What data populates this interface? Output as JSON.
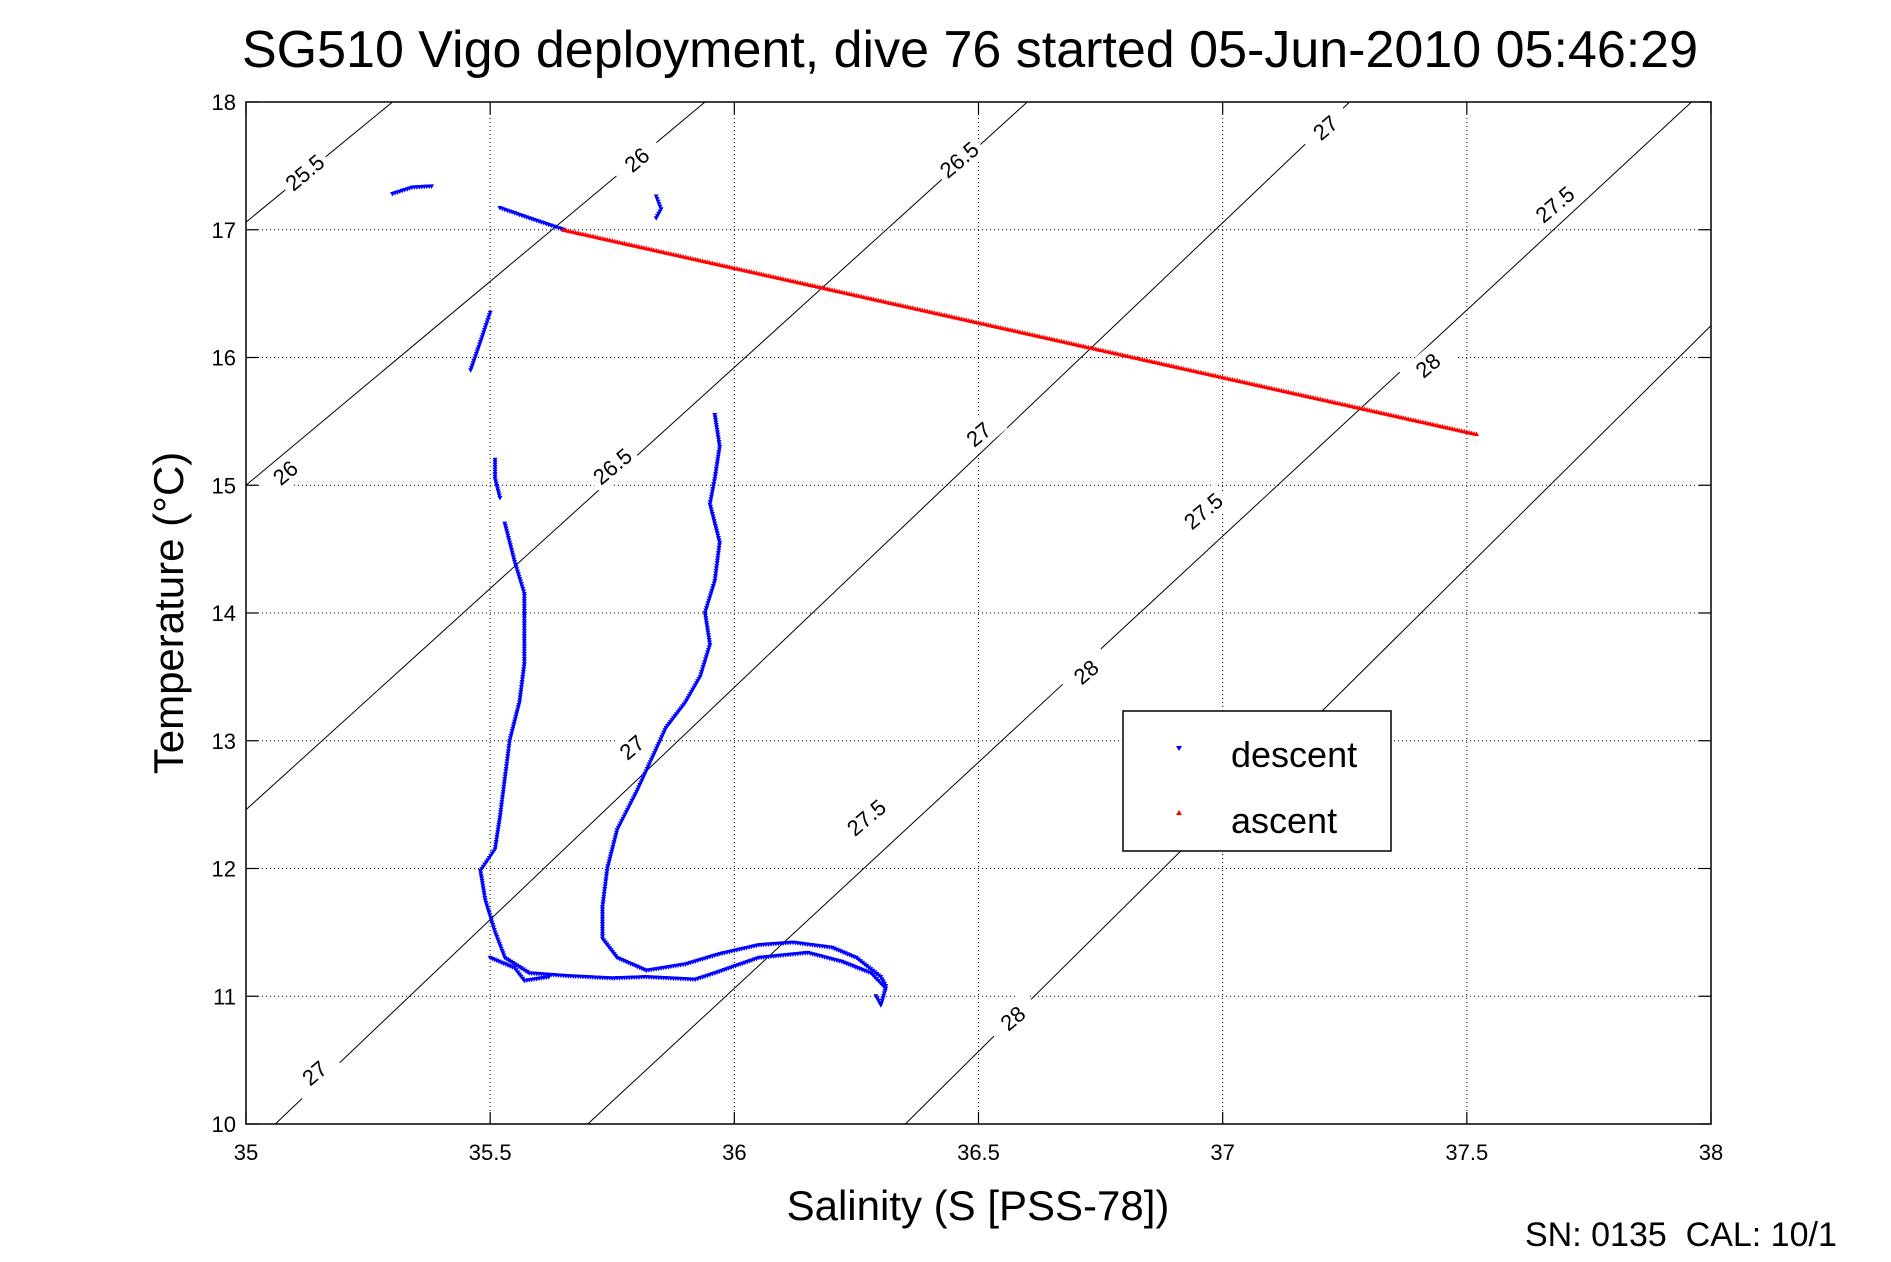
{
  "chart_data": {
    "type": "scatter",
    "title": "SG510 Vigo deployment, dive 76 started 05-Jun-2010 05:46:29",
    "xlabel": "Salinity (S [PSS-78])",
    "ylabel": "Temperature (°C)",
    "xlim": [
      35,
      38
    ],
    "ylim": [
      10,
      18
    ],
    "xticks": [
      "35",
      "35.5",
      "36",
      "36.5",
      "37",
      "37.5",
      "38"
    ],
    "yticks": [
      "10",
      "11",
      "12",
      "13",
      "14",
      "15",
      "16",
      "17",
      "18"
    ],
    "grid": true,
    "legend_position": "right-center",
    "footer": "SN: 0135  CAL: 10/1",
    "isopycnals": [
      {
        "label": "25.5",
        "points": [
          [
            35.0,
            17.06
          ],
          [
            35.3,
            18.0
          ]
        ]
      },
      {
        "label": "26",
        "points": [
          [
            35.0,
            15.0
          ],
          [
            35.94,
            18.0
          ]
        ]
      },
      {
        "label": "26.5",
        "points": [
          [
            35.0,
            12.46
          ],
          [
            36.6,
            18.0
          ]
        ]
      },
      {
        "label": "27",
        "points": [
          [
            35.06,
            10.0
          ],
          [
            37.26,
            18.0
          ]
        ]
      },
      {
        "label": "27.5",
        "points": [
          [
            35.7,
            10.0
          ],
          [
            37.96,
            18.0
          ]
        ]
      },
      {
        "label": "28",
        "points": [
          [
            36.35,
            10.0
          ],
          [
            38.0,
            16.25
          ]
        ]
      }
    ],
    "isopycnal_labels": [
      {
        "text": "25.5",
        "s": 35.12,
        "t": 17.45
      },
      {
        "text": "26",
        "s": 35.8,
        "t": 17.55
      },
      {
        "text": "26",
        "s": 35.08,
        "t": 15.1
      },
      {
        "text": "26.5",
        "s": 36.46,
        "t": 17.55
      },
      {
        "text": "26.5",
        "s": 35.75,
        "t": 15.15
      },
      {
        "text": "27",
        "s": 37.21,
        "t": 17.8
      },
      {
        "text": "27",
        "s": 36.5,
        "t": 15.4
      },
      {
        "text": "27",
        "s": 35.79,
        "t": 12.95
      },
      {
        "text": "27",
        "s": 35.14,
        "t": 10.4
      },
      {
        "text": "27.5",
        "s": 37.68,
        "t": 17.2
      },
      {
        "text": "27.5",
        "s": 36.96,
        "t": 14.8
      },
      {
        "text": "27.5",
        "s": 36.27,
        "t": 12.4
      },
      {
        "text": "28",
        "s": 37.42,
        "t": 15.94
      },
      {
        "text": "28",
        "s": 36.72,
        "t": 13.54
      },
      {
        "text": "28",
        "s": 36.57,
        "t": 10.83
      }
    ],
    "series": [
      {
        "name": "descent",
        "color": "#0000ff",
        "marker": "triangle-down",
        "segments": [
          [
            [
              35.52,
              17.17
            ],
            [
              35.58,
              17.09
            ],
            [
              35.65,
              17.0
            ]
          ],
          [
            [
              35.3,
              17.28
            ],
            [
              35.34,
              17.33
            ],
            [
              35.38,
              17.34
            ]
          ],
          [
            [
              35.84,
              17.26
            ],
            [
              35.85,
              17.16
            ],
            [
              35.84,
              17.09
            ]
          ],
          [
            [
              35.5,
              16.35
            ],
            [
              35.48,
              16.12
            ],
            [
              35.46,
              15.9
            ]
          ],
          [
            [
              35.51,
              15.2
            ],
            [
              35.51,
              15.05
            ],
            [
              35.52,
              14.9
            ]
          ],
          [
            [
              35.53,
              14.7
            ],
            [
              35.55,
              14.4
            ],
            [
              35.57,
              14.15
            ],
            [
              35.57,
              13.9
            ],
            [
              35.57,
              13.6
            ],
            [
              35.56,
              13.3
            ],
            [
              35.54,
              13.0
            ],
            [
              35.53,
              12.7
            ],
            [
              35.52,
              12.4
            ],
            [
              35.51,
              12.15
            ],
            [
              35.48,
              11.98
            ],
            [
              35.49,
              11.75
            ],
            [
              35.51,
              11.5
            ],
            [
              35.53,
              11.3
            ],
            [
              35.58,
              11.18
            ],
            [
              35.65,
              11.16
            ],
            [
              35.75,
              11.14
            ],
            [
              35.82,
              11.15
            ],
            [
              35.92,
              11.13
            ],
            [
              35.96,
              11.18
            ],
            [
              36.05,
              11.3
            ],
            [
              36.15,
              11.34
            ],
            [
              36.22,
              11.27
            ],
            [
              36.28,
              11.18
            ],
            [
              36.31,
              11.06
            ],
            [
              36.3,
              10.93
            ],
            [
              36.29,
              11.0
            ]
          ],
          [
            [
              35.96,
              15.55
            ],
            [
              35.97,
              15.3
            ],
            [
              35.96,
              15.05
            ],
            [
              35.95,
              14.85
            ],
            [
              35.97,
              14.55
            ],
            [
              35.96,
              14.25
            ],
            [
              35.94,
              14.0
            ],
            [
              35.95,
              13.75
            ],
            [
              35.93,
              13.5
            ],
            [
              35.9,
              13.3
            ],
            [
              35.86,
              13.1
            ],
            [
              35.83,
              12.85
            ],
            [
              35.8,
              12.6
            ],
            [
              35.76,
              12.3
            ],
            [
              35.74,
              12.0
            ],
            [
              35.73,
              11.7
            ],
            [
              35.73,
              11.45
            ],
            [
              35.76,
              11.3
            ],
            [
              35.82,
              11.2
            ],
            [
              35.9,
              11.25
            ],
            [
              35.97,
              11.33
            ],
            [
              36.05,
              11.4
            ],
            [
              36.12,
              11.42
            ],
            [
              36.2,
              11.38
            ],
            [
              36.25,
              11.3
            ],
            [
              36.3,
              11.15
            ],
            [
              36.31,
              11.08
            ]
          ],
          [
            [
              35.5,
              11.3
            ],
            [
              35.55,
              11.22
            ],
            [
              35.57,
              11.12
            ],
            [
              35.62,
              11.15
            ]
          ]
        ]
      },
      {
        "name": "ascent",
        "color": "#ff0000",
        "marker": "triangle-up",
        "segments": [
          [
            [
              35.65,
              17.0
            ],
            [
              37.52,
              15.4
            ]
          ]
        ]
      }
    ]
  }
}
